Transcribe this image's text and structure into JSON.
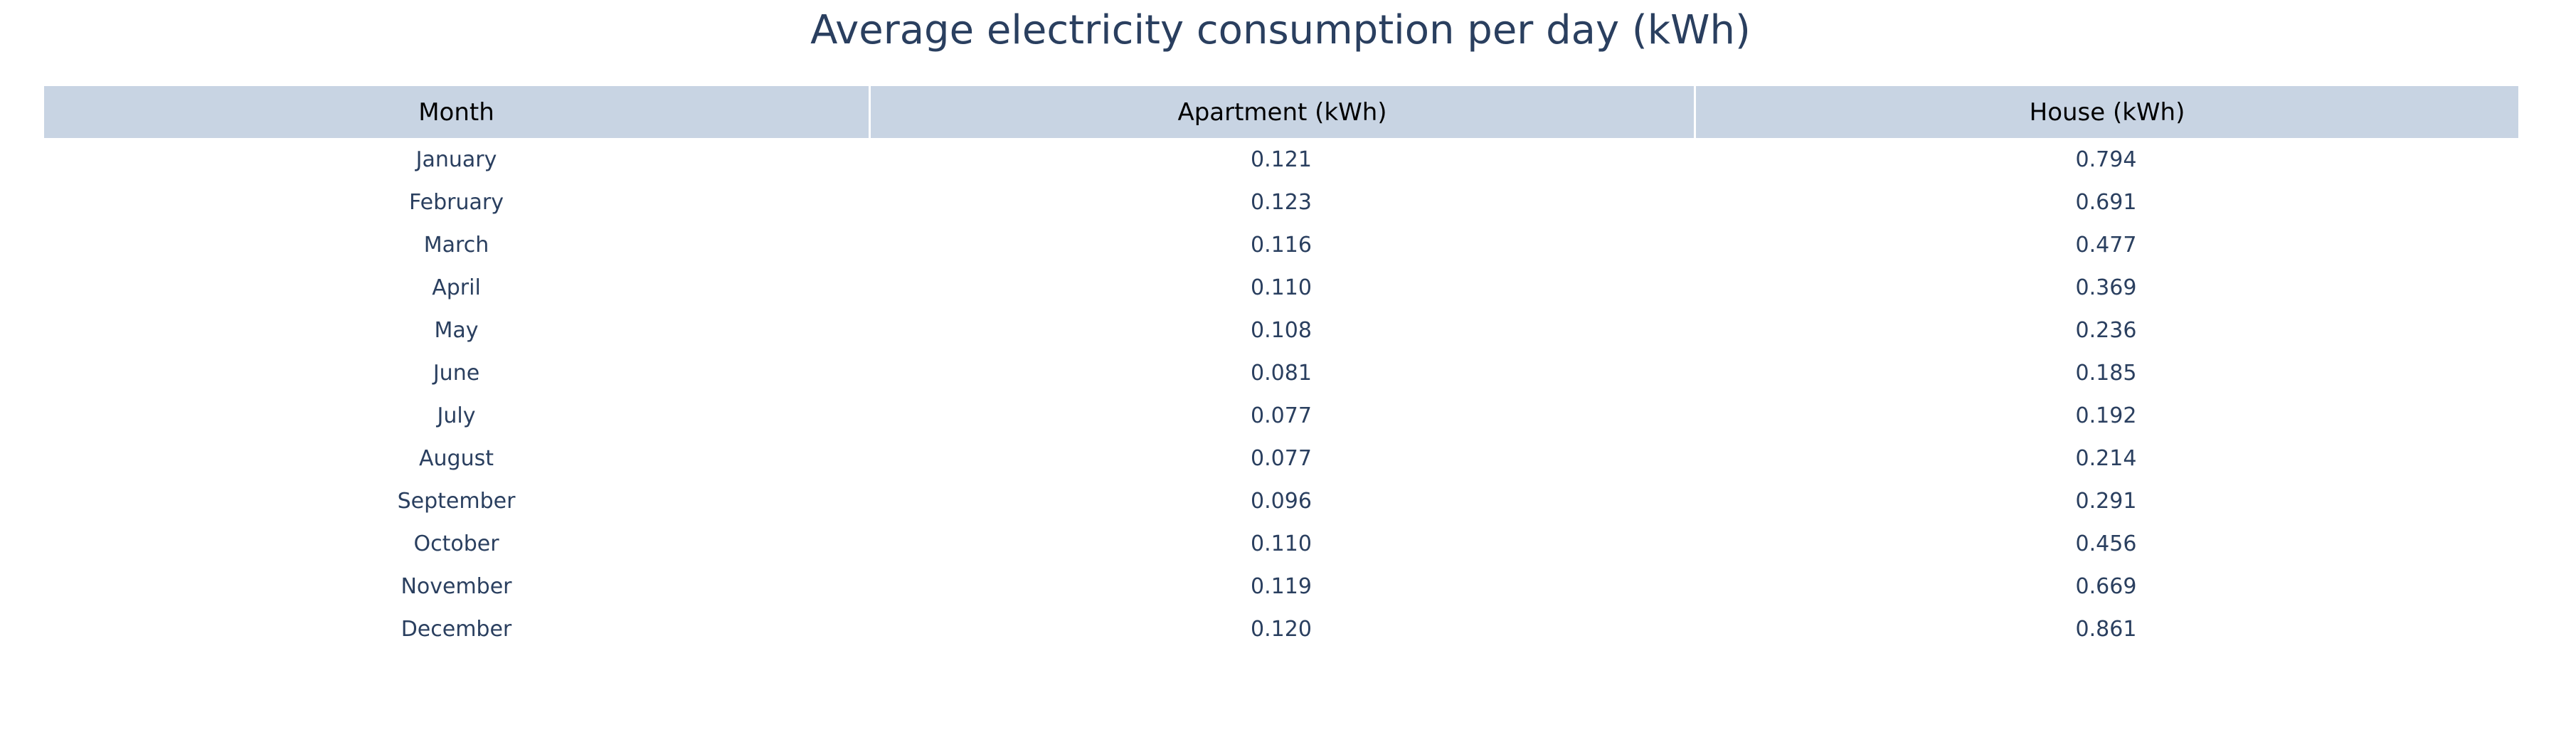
{
  "chart_data": {
    "type": "table",
    "title": "Average electricity consumption per day (kWh)",
    "columns": [
      "Month",
      "Apartment (kWh)",
      "House (kWh)"
    ],
    "rows": [
      [
        "January",
        "0.121",
        "0.794"
      ],
      [
        "February",
        "0.123",
        "0.691"
      ],
      [
        "March",
        "0.116",
        "0.477"
      ],
      [
        "April",
        "0.110",
        "0.369"
      ],
      [
        "May",
        "0.108",
        "0.236"
      ],
      [
        "June",
        "0.081",
        "0.185"
      ],
      [
        "July",
        "0.077",
        "0.192"
      ],
      [
        "August",
        "0.077",
        "0.214"
      ],
      [
        "September",
        "0.096",
        "0.291"
      ],
      [
        "October",
        "0.110",
        "0.456"
      ],
      [
        "November",
        "0.119",
        "0.669"
      ],
      [
        "December",
        "0.120",
        "0.861"
      ]
    ]
  },
  "colors": {
    "header_fill": "#c8d4e3",
    "header_text": "#000000",
    "body_text": "#2a3f5f",
    "title_text": "#2a3f5f"
  }
}
